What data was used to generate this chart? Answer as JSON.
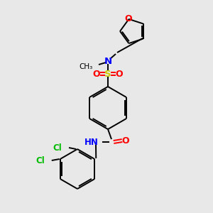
{
  "bg": "#e8e8e8",
  "bc": "#000000",
  "oc": "#ff0000",
  "nc": "#0000ff",
  "sc": "#cccc00",
  "clc": "#00bb00",
  "figsize": [
    3.0,
    3.0
  ],
  "dpi": 100,
  "xlim": [
    0,
    300
  ],
  "ylim": [
    0,
    300
  ]
}
